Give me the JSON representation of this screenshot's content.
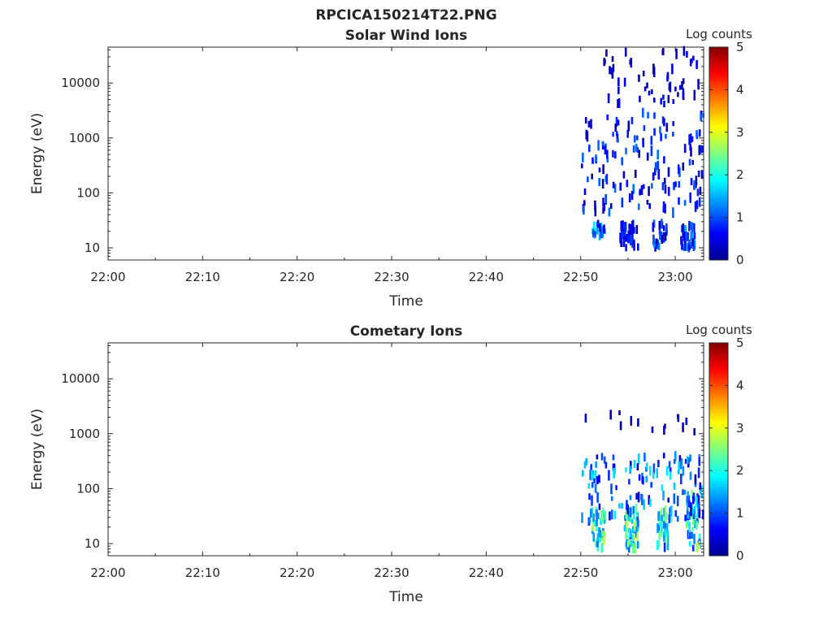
{
  "figure_title": "RPCICA150214T22.PNG",
  "colormap": [
    "#00008f",
    "#0000ff",
    "#0080ff",
    "#00ffff",
    "#80ff80",
    "#ffff00",
    "#ff8000",
    "#ff0000",
    "#800000"
  ],
  "chart_data": [
    {
      "type": "heatmap",
      "title": "Solar Wind Ions",
      "xlabel": "Time",
      "ylabel": "Energy (eV)",
      "y_scale": "log",
      "ylim": [
        6,
        45000
      ],
      "xlim": [
        "22:00",
        "23:03"
      ],
      "x_ticks": [
        "22:00",
        "22:10",
        "22:20",
        "22:30",
        "22:40",
        "22:50",
        "23:00"
      ],
      "y_ticks": [
        "10",
        "100",
        "1000",
        "10000"
      ],
      "colorbar": {
        "label": "Log counts",
        "range": [
          0,
          5
        ],
        "ticks": [
          "0",
          "1",
          "2",
          "3",
          "4",
          "5"
        ]
      },
      "clusters": [
        {
          "t": [
            "22:51:00",
            "22:52:30"
          ],
          "e": [
            15,
            28
          ],
          "count": 22,
          "level": [
            0.3,
            2.0
          ]
        },
        {
          "t": [
            "22:54:00",
            "22:56:00"
          ],
          "e": [
            10,
            28
          ],
          "count": 45,
          "level": [
            0.2,
            1.0
          ]
        },
        {
          "t": [
            "22:57:30",
            "22:59:00"
          ],
          "e": [
            10,
            28
          ],
          "count": 28,
          "level": [
            0.2,
            1.3
          ]
        },
        {
          "t": [
            "23:00:30",
            "23:02:00"
          ],
          "e": [
            10,
            28
          ],
          "count": 40,
          "level": [
            0.2,
            1.6
          ]
        },
        {
          "t": [
            "22:50:00",
            "23:03:00"
          ],
          "e": [
            40,
            3000
          ],
          "count": 150,
          "level": [
            0.1,
            1.2
          ]
        },
        {
          "t": [
            "22:52:00",
            "23:02:30"
          ],
          "e": [
            4000,
            40000
          ],
          "count": 55,
          "level": [
            0.1,
            0.6
          ]
        }
      ]
    },
    {
      "type": "heatmap",
      "title": "Cometary Ions",
      "xlabel": "Time",
      "ylabel": "Energy (eV)",
      "y_scale": "log",
      "ylim": [
        6,
        45000
      ],
      "xlim": [
        "22:00",
        "23:03"
      ],
      "x_ticks": [
        "22:00",
        "22:10",
        "22:20",
        "22:30",
        "22:40",
        "22:50",
        "23:00"
      ],
      "y_ticks": [
        "10",
        "100",
        "1000",
        "10000"
      ],
      "colorbar": {
        "label": "Log counts",
        "range": [
          0,
          5
        ],
        "ticks": [
          "0",
          "1",
          "2",
          "3",
          "4",
          "5"
        ]
      },
      "clusters": [
        {
          "t": [
            "22:51:00",
            "22:52:30"
          ],
          "e": [
            8,
            45
          ],
          "count": 40,
          "level": [
            0.8,
            2.8
          ]
        },
        {
          "t": [
            "22:54:30",
            "22:56:00"
          ],
          "e": [
            8,
            45
          ],
          "count": 55,
          "level": [
            0.8,
            2.9
          ]
        },
        {
          "t": [
            "22:58:00",
            "22:59:30"
          ],
          "e": [
            8,
            45
          ],
          "count": 40,
          "level": [
            0.8,
            2.7
          ]
        },
        {
          "t": [
            "23:01:00",
            "23:02:30"
          ],
          "e": [
            8,
            80
          ],
          "count": 50,
          "level": [
            0.8,
            2.8
          ]
        },
        {
          "t": [
            "22:50:00",
            "23:03:00"
          ],
          "e": [
            25,
            400
          ],
          "count": 130,
          "level": [
            0.2,
            1.8
          ]
        },
        {
          "t": [
            "22:50:00",
            "23:03:00"
          ],
          "e": [
            1000,
            2500
          ],
          "count": 14,
          "level": [
            0.1,
            0.4
          ]
        }
      ]
    }
  ]
}
